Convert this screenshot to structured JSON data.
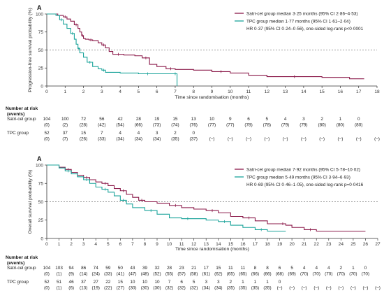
{
  "chart_data": [
    {
      "type": "line",
      "panel_label": "A",
      "ylabel": "Progression-free survival probability (%)",
      "xlabel": "Time since randomisation (months)",
      "xlim": [
        0,
        18
      ],
      "ylim": [
        0,
        100
      ],
      "xticks": [
        0,
        1,
        2,
        3,
        4,
        5,
        6,
        7,
        8,
        9,
        10,
        11,
        12,
        13,
        14,
        15,
        16,
        17,
        18
      ],
      "yticks": [
        0,
        25,
        50,
        75,
        100
      ],
      "reference_line_y": 50,
      "legend_position": "top-right",
      "series": [
        {
          "name": "Satri-cel group median 3·25 months (95% CI 2·86–4·53)",
          "color": "#8b1a4a",
          "x": [
            0,
            0.6,
            0.9,
            1.1,
            1.3,
            1.5,
            1.7,
            1.8,
            1.9,
            2.0,
            2.1,
            2.3,
            2.5,
            2.8,
            3.0,
            3.2,
            3.4,
            3.6,
            4.2,
            4.8,
            5.2,
            5.6,
            6.0,
            6.5,
            7.0,
            8.0,
            9.0,
            10.0,
            11.0,
            12.0,
            15.0,
            16.5,
            17.3
          ],
          "y": [
            100,
            98,
            96,
            93,
            90,
            85,
            80,
            75,
            70,
            66,
            65,
            64,
            63,
            60,
            57,
            53,
            48,
            44,
            43,
            42,
            39,
            30,
            27,
            24,
            23,
            22,
            20,
            18,
            15,
            13,
            12,
            10,
            10
          ]
        },
        {
          "name": "TPC group median 1·77 months (95% CI 1·61–2·04)",
          "color": "#1aa39a",
          "x": [
            0,
            0.5,
            0.7,
            0.9,
            1.1,
            1.3,
            1.5,
            1.6,
            1.7,
            1.8,
            2.0,
            2.2,
            2.5,
            2.8,
            3.0,
            3.2,
            4.0,
            5.0,
            6.0,
            6.6,
            6.9,
            7.1
          ],
          "y": [
            100,
            98,
            92,
            86,
            80,
            73,
            65,
            58,
            52,
            46,
            40,
            33,
            27,
            24,
            22,
            19,
            18,
            17,
            17,
            17,
            17,
            0
          ]
        }
      ],
      "annotation": "HR 0·37 (95% CI 0·24–0·56), one-sided log-rank p<0·0001",
      "risk_table": {
        "title": "Number at risk",
        "subtitle": "(events)",
        "times": [
          0,
          1,
          2,
          3,
          4,
          5,
          6,
          7,
          8,
          9,
          10,
          11,
          12,
          13,
          14,
          15,
          16,
          17,
          18
        ],
        "rows": [
          {
            "label": "Satri-cel group",
            "at_risk": [
              "104",
              "100",
              "72",
              "56",
              "42",
              "28",
              "19",
              "15",
              "13",
              "10",
              "9",
              "6",
              "5",
              "4",
              "3",
              "2",
              "1",
              "0",
              ""
            ],
            "events": [
              "(0)",
              "(2)",
              "(28)",
              "(42)",
              "(54)",
              "(66)",
              "(73)",
              "(74)",
              "(76)",
              "(77)",
              "(77)",
              "(78)",
              "(78)",
              "(79)",
              "(79)",
              "(80)",
              "(80)",
              "(80)",
              ""
            ]
          },
          {
            "label": "TPC group",
            "at_risk": [
              "52",
              "37",
              "15",
              "7",
              "4",
              "4",
              "3",
              "2",
              "0",
              "",
              "",
              "",
              "",
              "",
              "",
              "",
              "",
              "",
              ""
            ],
            "events": [
              "(0)",
              "(7)",
              "(26)",
              "(33)",
              "(34)",
              "(34)",
              "(34)",
              "(35)",
              "(37)",
              "(–)",
              "(–)",
              "(–)",
              "(–)",
              "(–)",
              "(–)",
              "(–)",
              "(–)",
              "(–)",
              "(–)"
            ]
          }
        ]
      }
    },
    {
      "type": "line",
      "panel_label": "A",
      "ylabel": "Overall survival probability (%)",
      "xlabel": "Time since randomisation (months)",
      "xlim": [
        0,
        27
      ],
      "ylim": [
        0,
        100
      ],
      "xticks": [
        0,
        1,
        2,
        3,
        4,
        5,
        6,
        7,
        8,
        9,
        10,
        11,
        12,
        13,
        14,
        15,
        16,
        17,
        18,
        19,
        20,
        21,
        22,
        23,
        24,
        25,
        26,
        27
      ],
      "yticks": [
        0,
        25,
        50,
        75,
        100
      ],
      "reference_line_y": 50,
      "legend_position": "top-right",
      "series": [
        {
          "name": "Satri-cel group median 7·92 months (95% CI 5·78–10·02)",
          "color": "#8b1a4a",
          "x": [
            0,
            1,
            1.5,
            2,
            2.5,
            3,
            3.5,
            4,
            4.5,
            5,
            5.5,
            6,
            6.5,
            7,
            7.5,
            8,
            9,
            10,
            11,
            12,
            13,
            14,
            15,
            16,
            17,
            18,
            19,
            19.5,
            20,
            21,
            22,
            26
          ],
          "y": [
            100,
            97,
            94,
            90,
            86,
            83,
            80,
            77,
            75,
            72,
            68,
            65,
            60,
            56,
            52,
            50,
            48,
            45,
            42,
            40,
            38,
            35,
            30,
            28,
            24,
            20,
            20,
            18,
            15,
            12,
            10,
            10
          ]
        },
        {
          "name": "TPC group median 5·49 months (95% CI 3·94–6·93)",
          "color": "#1aa39a",
          "x": [
            0,
            1,
            1.5,
            2,
            2.5,
            3,
            3.5,
            4,
            4.5,
            5,
            5.5,
            6,
            6.5,
            7,
            8,
            9,
            10,
            11,
            12,
            13,
            14,
            15,
            16,
            17,
            18,
            19,
            19.5
          ],
          "y": [
            100,
            96,
            92,
            88,
            84,
            80,
            75,
            70,
            67,
            63,
            58,
            52,
            47,
            42,
            38,
            33,
            28,
            27,
            27,
            25,
            23,
            18,
            15,
            12,
            10,
            10,
            10
          ]
        }
      ],
      "annotation": "HR 0·69 (95% CI 0·46–1·05), one-sided log-rank p=0·0416",
      "risk_table": {
        "title": "Number at risk",
        "subtitle": "(events)",
        "times": [
          0,
          1,
          2,
          3,
          4,
          5,
          6,
          7,
          8,
          9,
          10,
          11,
          12,
          13,
          14,
          15,
          16,
          17,
          18,
          19,
          20,
          21,
          22,
          23,
          24,
          25,
          26,
          27
        ],
        "rows": [
          {
            "label": "Satri-cel group",
            "at_risk": [
              "104",
              "103",
              "94",
              "86",
              "74",
              "59",
              "50",
              "43",
              "39",
              "32",
              "28",
              "23",
              "21",
              "17",
              "15",
              "11",
              "11",
              "8",
              "8",
              "6",
              "5",
              "4",
              "4",
              "4",
              "2",
              "1",
              "0",
              ""
            ],
            "events": [
              "(0)",
              "(1)",
              "(9)",
              "(14)",
              "(24)",
              "(33)",
              "(41)",
              "(47)",
              "(48)",
              "(52)",
              "(55)",
              "(57)",
              "(58)",
              "(61)",
              "(62)",
              "(65)",
              "(65)",
              "(66)",
              "(66)",
              "(68)",
              "(69)",
              "(70)",
              "(70)",
              "(70)",
              "(70)",
              "(70)",
              "(70)",
              ""
            ]
          },
          {
            "label": "TPC group",
            "at_risk": [
              "52",
              "51",
              "46",
              "37",
              "27",
              "22",
              "15",
              "10",
              "10",
              "10",
              "7",
              "6",
              "5",
              "3",
              "3",
              "2",
              "1",
              "1",
              "1",
              "0",
              "",
              "",
              "",
              "",
              "",
              "",
              "",
              ""
            ],
            "events": [
              "(0)",
              "(1)",
              "(6)",
              "(13)",
              "(19)",
              "(22)",
              "(27)",
              "(30)",
              "(30)",
              "(30)",
              "(32)",
              "(32)",
              "(32)",
              "(34)",
              "(34)",
              "(35)",
              "(35)",
              "(35)",
              "(35)",
              "(–)",
              "(–)",
              "(–)",
              "(–)",
              "(–)",
              "(–)",
              "(–)",
              "(–)",
              "(–)"
            ]
          }
        ]
      }
    }
  ]
}
